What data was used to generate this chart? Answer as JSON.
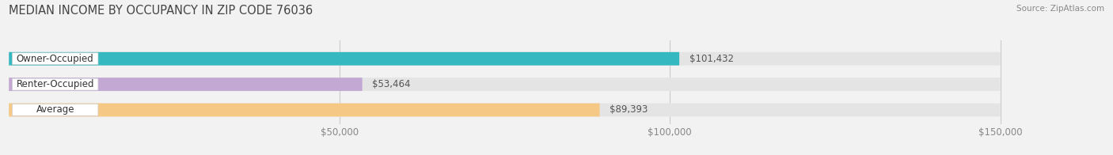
{
  "title": "MEDIAN INCOME BY OCCUPANCY IN ZIP CODE 76036",
  "source": "Source: ZipAtlas.com",
  "categories": [
    "Owner-Occupied",
    "Renter-Occupied",
    "Average"
  ],
  "values": [
    101432,
    53464,
    89393
  ],
  "bar_colors": [
    "#35b8c0",
    "#c4a8d4",
    "#f5c886"
  ],
  "value_labels": [
    "$101,432",
    "$53,464",
    "$89,393"
  ],
  "xlim": [
    0,
    162000
  ],
  "data_max": 150000,
  "xticks": [
    50000,
    100000,
    150000
  ],
  "xtick_labels": [
    "$50,000",
    "$100,000",
    "$150,000"
  ],
  "background_color": "#f2f2f2",
  "bar_bg_color": "#e4e4e4",
  "label_bg_color": "#ffffff",
  "title_fontsize": 10.5,
  "tick_fontsize": 8.5,
  "label_fontsize": 8.5,
  "value_fontsize": 8.5
}
